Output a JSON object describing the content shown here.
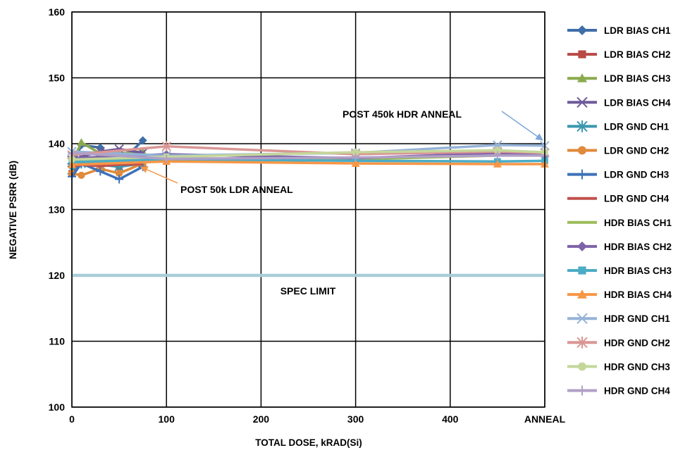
{
  "chart_data": {
    "type": "line",
    "xlabel": "TOTAL DOSE, kRAD(Si)",
    "ylabel": "NEGATIVE PSRR (dB)",
    "xlim": [
      0,
      500
    ],
    "ylim": [
      100,
      160
    ],
    "x_ticks": [
      {
        "value": 0,
        "label": "0"
      },
      {
        "value": 100,
        "label": "100"
      },
      {
        "value": 200,
        "label": "200"
      },
      {
        "value": 300,
        "label": "300"
      },
      {
        "value": 400,
        "label": "400"
      },
      {
        "value": 500,
        "label": "ANNEAL"
      }
    ],
    "y_ticks": [
      100,
      110,
      120,
      130,
      140,
      150,
      160
    ],
    "grid": true,
    "legend_position": "right",
    "spec_limit": {
      "value": 120,
      "label": "SPEC LIMIT",
      "color": "#A9CDD8"
    },
    "annotations": [
      {
        "text": "POST 450k HDR ANNEAL"
      },
      {
        "text": "POST 50k LDR ANNEAL"
      }
    ],
    "series": [
      {
        "name": "LDR BIAS CH1",
        "color": "#3F6EA8",
        "marker": "diamond",
        "x": [
          0,
          10,
          30,
          50,
          75
        ],
        "y": [
          136.5,
          139.8,
          139.4,
          137.0,
          140.5
        ]
      },
      {
        "name": "LDR BIAS CH2",
        "color": "#B84A45",
        "marker": "square",
        "x": [
          0,
          10,
          30,
          50,
          75
        ],
        "y": [
          135.5,
          137.5,
          137.0,
          136.5,
          137.2
        ]
      },
      {
        "name": "LDR BIAS CH3",
        "color": "#8AAA4E",
        "marker": "triangle",
        "x": [
          0,
          10,
          30,
          50,
          75
        ],
        "y": [
          137.0,
          140.2,
          138.5,
          138.5,
          138.8
        ]
      },
      {
        "name": "LDR BIAS CH4",
        "color": "#6E5A99",
        "marker": "x",
        "x": [
          0,
          10,
          30,
          50,
          75
        ],
        "y": [
          137.5,
          138.0,
          138.8,
          139.2,
          138.6
        ]
      },
      {
        "name": "LDR GND CH1",
        "color": "#3A98AE",
        "marker": "asterisk",
        "x": [
          0,
          10,
          30,
          50,
          75
        ],
        "y": [
          136.0,
          137.0,
          136.8,
          136.5,
          137.0
        ]
      },
      {
        "name": "LDR GND CH2",
        "color": "#E08A3B",
        "marker": "circle",
        "x": [
          0,
          10,
          30,
          50,
          75
        ],
        "y": [
          135.5,
          135.2,
          136.2,
          135.5,
          137.0
        ]
      },
      {
        "name": "LDR GND CH3",
        "color": "#3E72B8",
        "marker": "plus",
        "x": [
          0,
          10,
          30,
          50,
          75
        ],
        "y": [
          135.0,
          137.0,
          135.8,
          134.6,
          136.5
        ]
      },
      {
        "name": "LDR GND CH4",
        "color": "#C0504D",
        "marker": "none",
        "x": [
          0,
          10,
          30,
          50,
          75
        ],
        "y": [
          136.5,
          136.8,
          136.6,
          136.8,
          136.9
        ]
      },
      {
        "name": "HDR BIAS CH1",
        "color": "#9BBB59",
        "marker": "none",
        "x": [
          0,
          100,
          300,
          450,
          500
        ],
        "y": [
          137.3,
          137.8,
          137.6,
          138.2,
          138.5
        ]
      },
      {
        "name": "HDR BIAS CH2",
        "color": "#7E63A8",
        "marker": "diamond",
        "x": [
          0,
          100,
          300,
          450,
          500
        ],
        "y": [
          137.8,
          138.4,
          137.8,
          138.6,
          138.2
        ]
      },
      {
        "name": "HDR BIAS CH3",
        "color": "#4BACC6",
        "marker": "square",
        "x": [
          0,
          100,
          300,
          450,
          500
        ],
        "y": [
          137.2,
          137.6,
          137.4,
          137.3,
          137.4
        ]
      },
      {
        "name": "HDR BIAS CH4",
        "color": "#F79646",
        "marker": "triangle",
        "x": [
          0,
          100,
          300,
          450,
          500
        ],
        "y": [
          136.8,
          137.3,
          137.0,
          136.9,
          136.9
        ]
      },
      {
        "name": "HDR GND CH1",
        "color": "#95B3D7",
        "marker": "x",
        "x": [
          0,
          100,
          300,
          450,
          500
        ],
        "y": [
          138.8,
          138.2,
          138.6,
          139.8,
          139.7
        ]
      },
      {
        "name": "HDR GND CH2",
        "color": "#DA9694",
        "marker": "asterisk",
        "x": [
          0,
          100,
          300,
          450,
          500
        ],
        "y": [
          138.3,
          139.6,
          138.4,
          138.8,
          138.6
        ]
      },
      {
        "name": "HDR GND CH3",
        "color": "#C4D79B",
        "marker": "circle",
        "x": [
          0,
          100,
          300,
          450,
          500
        ],
        "y": [
          137.6,
          138.0,
          138.7,
          139.0,
          138.7
        ]
      },
      {
        "name": "HDR GND CH4",
        "color": "#B1A0C7",
        "marker": "plus",
        "x": [
          0,
          100,
          300,
          450,
          500
        ],
        "y": [
          138.6,
          137.7,
          137.9,
          138.2,
          138.2
        ]
      }
    ]
  }
}
